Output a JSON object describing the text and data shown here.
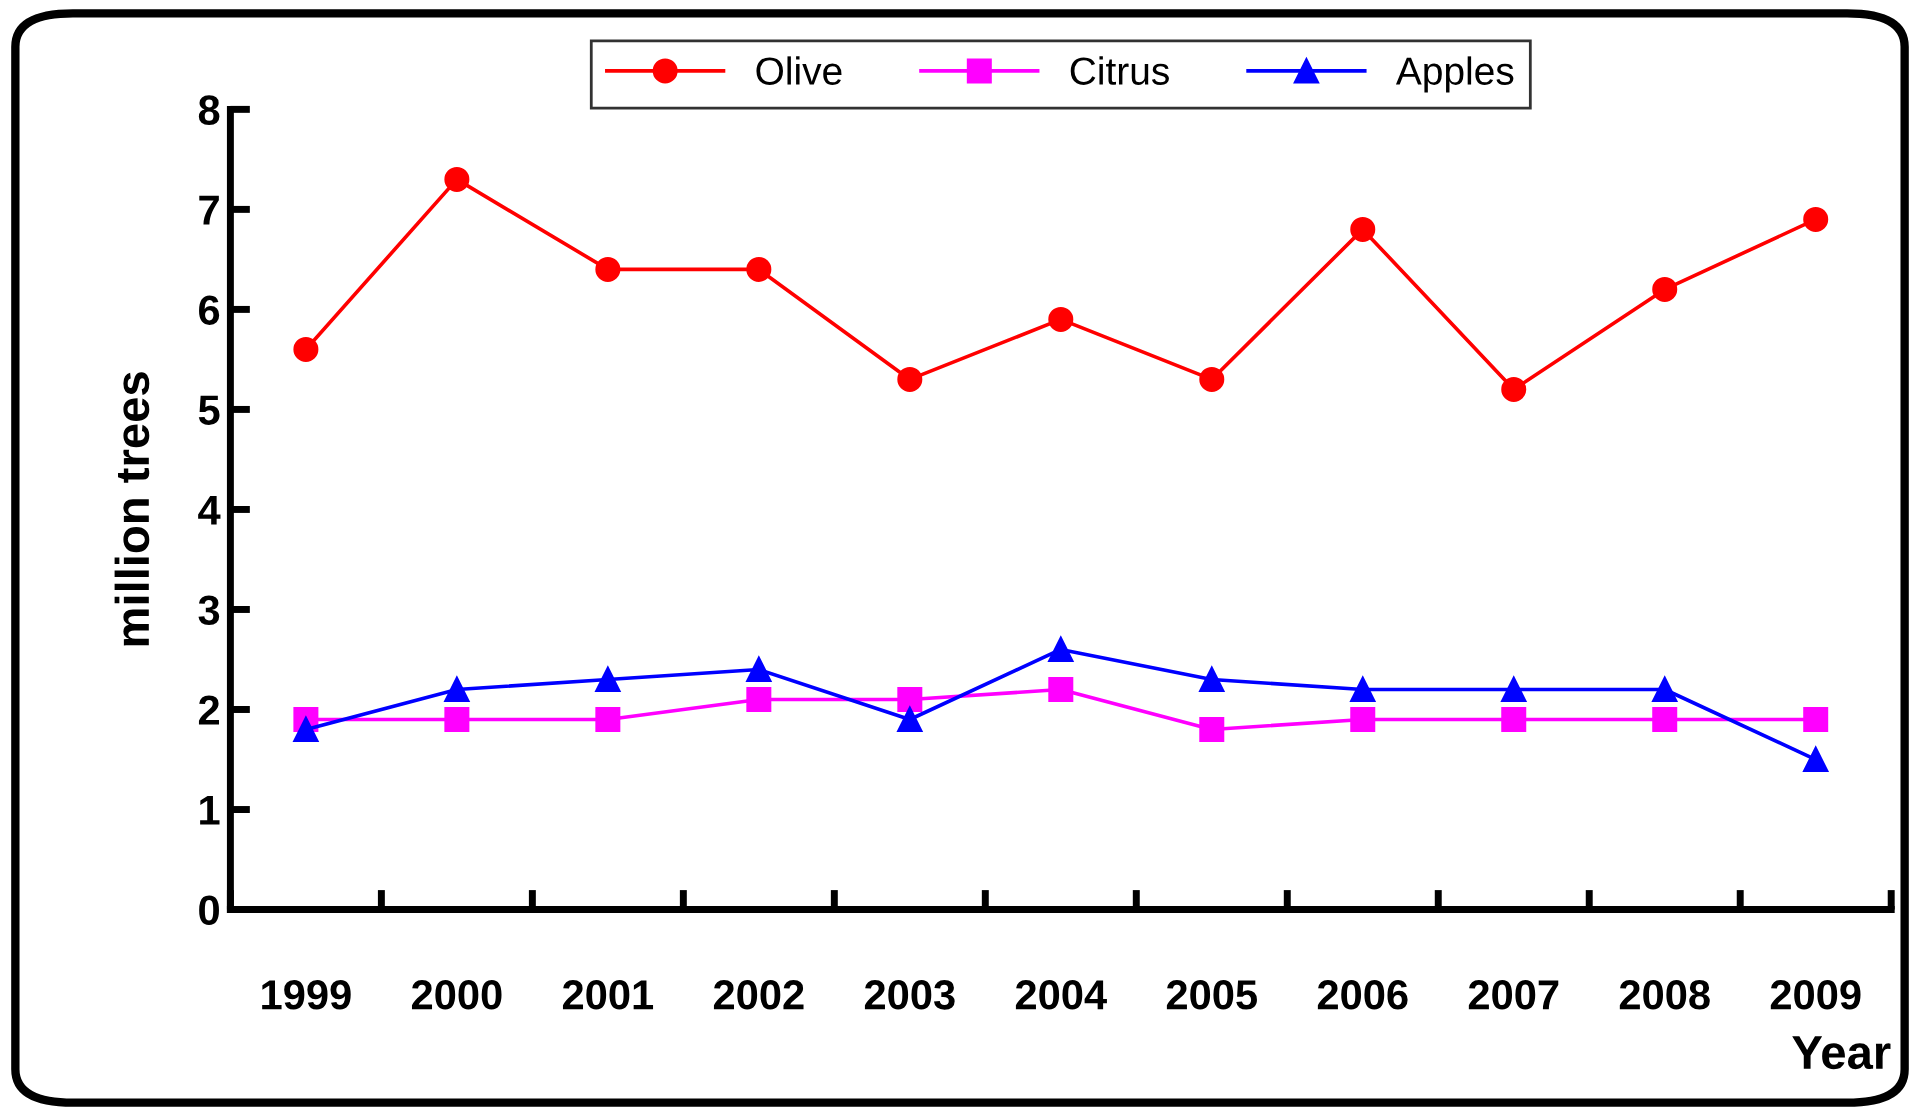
{
  "chart_data": {
    "type": "line",
    "xlabel": "Year",
    "ylabel": "million trees",
    "categories": [
      "1999",
      "2000",
      "2001",
      "2002",
      "2003",
      "2004",
      "2005",
      "2006",
      "2007",
      "2008",
      "2009"
    ],
    "series": [
      {
        "name": "Olive",
        "color": "#ff0000",
        "marker": "circle",
        "values": [
          5.6,
          7.3,
          6.4,
          6.4,
          5.3,
          5.9,
          5.3,
          6.8,
          5.2,
          6.2,
          6.9
        ]
      },
      {
        "name": "Citrus",
        "color": "#ff00ff",
        "marker": "square",
        "values": [
          1.9,
          1.9,
          1.9,
          2.1,
          2.1,
          2.2,
          1.8,
          1.9,
          1.9,
          1.9,
          1.9
        ]
      },
      {
        "name": "Apples",
        "color": "#0000ff",
        "marker": "triangle",
        "values": [
          1.8,
          2.2,
          2.3,
          2.4,
          1.9,
          2.6,
          2.3,
          2.2,
          2.2,
          2.2,
          1.5
        ]
      }
    ],
    "ylim": [
      0,
      8
    ],
    "yticks": [
      0,
      1,
      2,
      3,
      4,
      5,
      6,
      7,
      8
    ],
    "grid": false,
    "legend": "top",
    "line_style": "solid"
  }
}
